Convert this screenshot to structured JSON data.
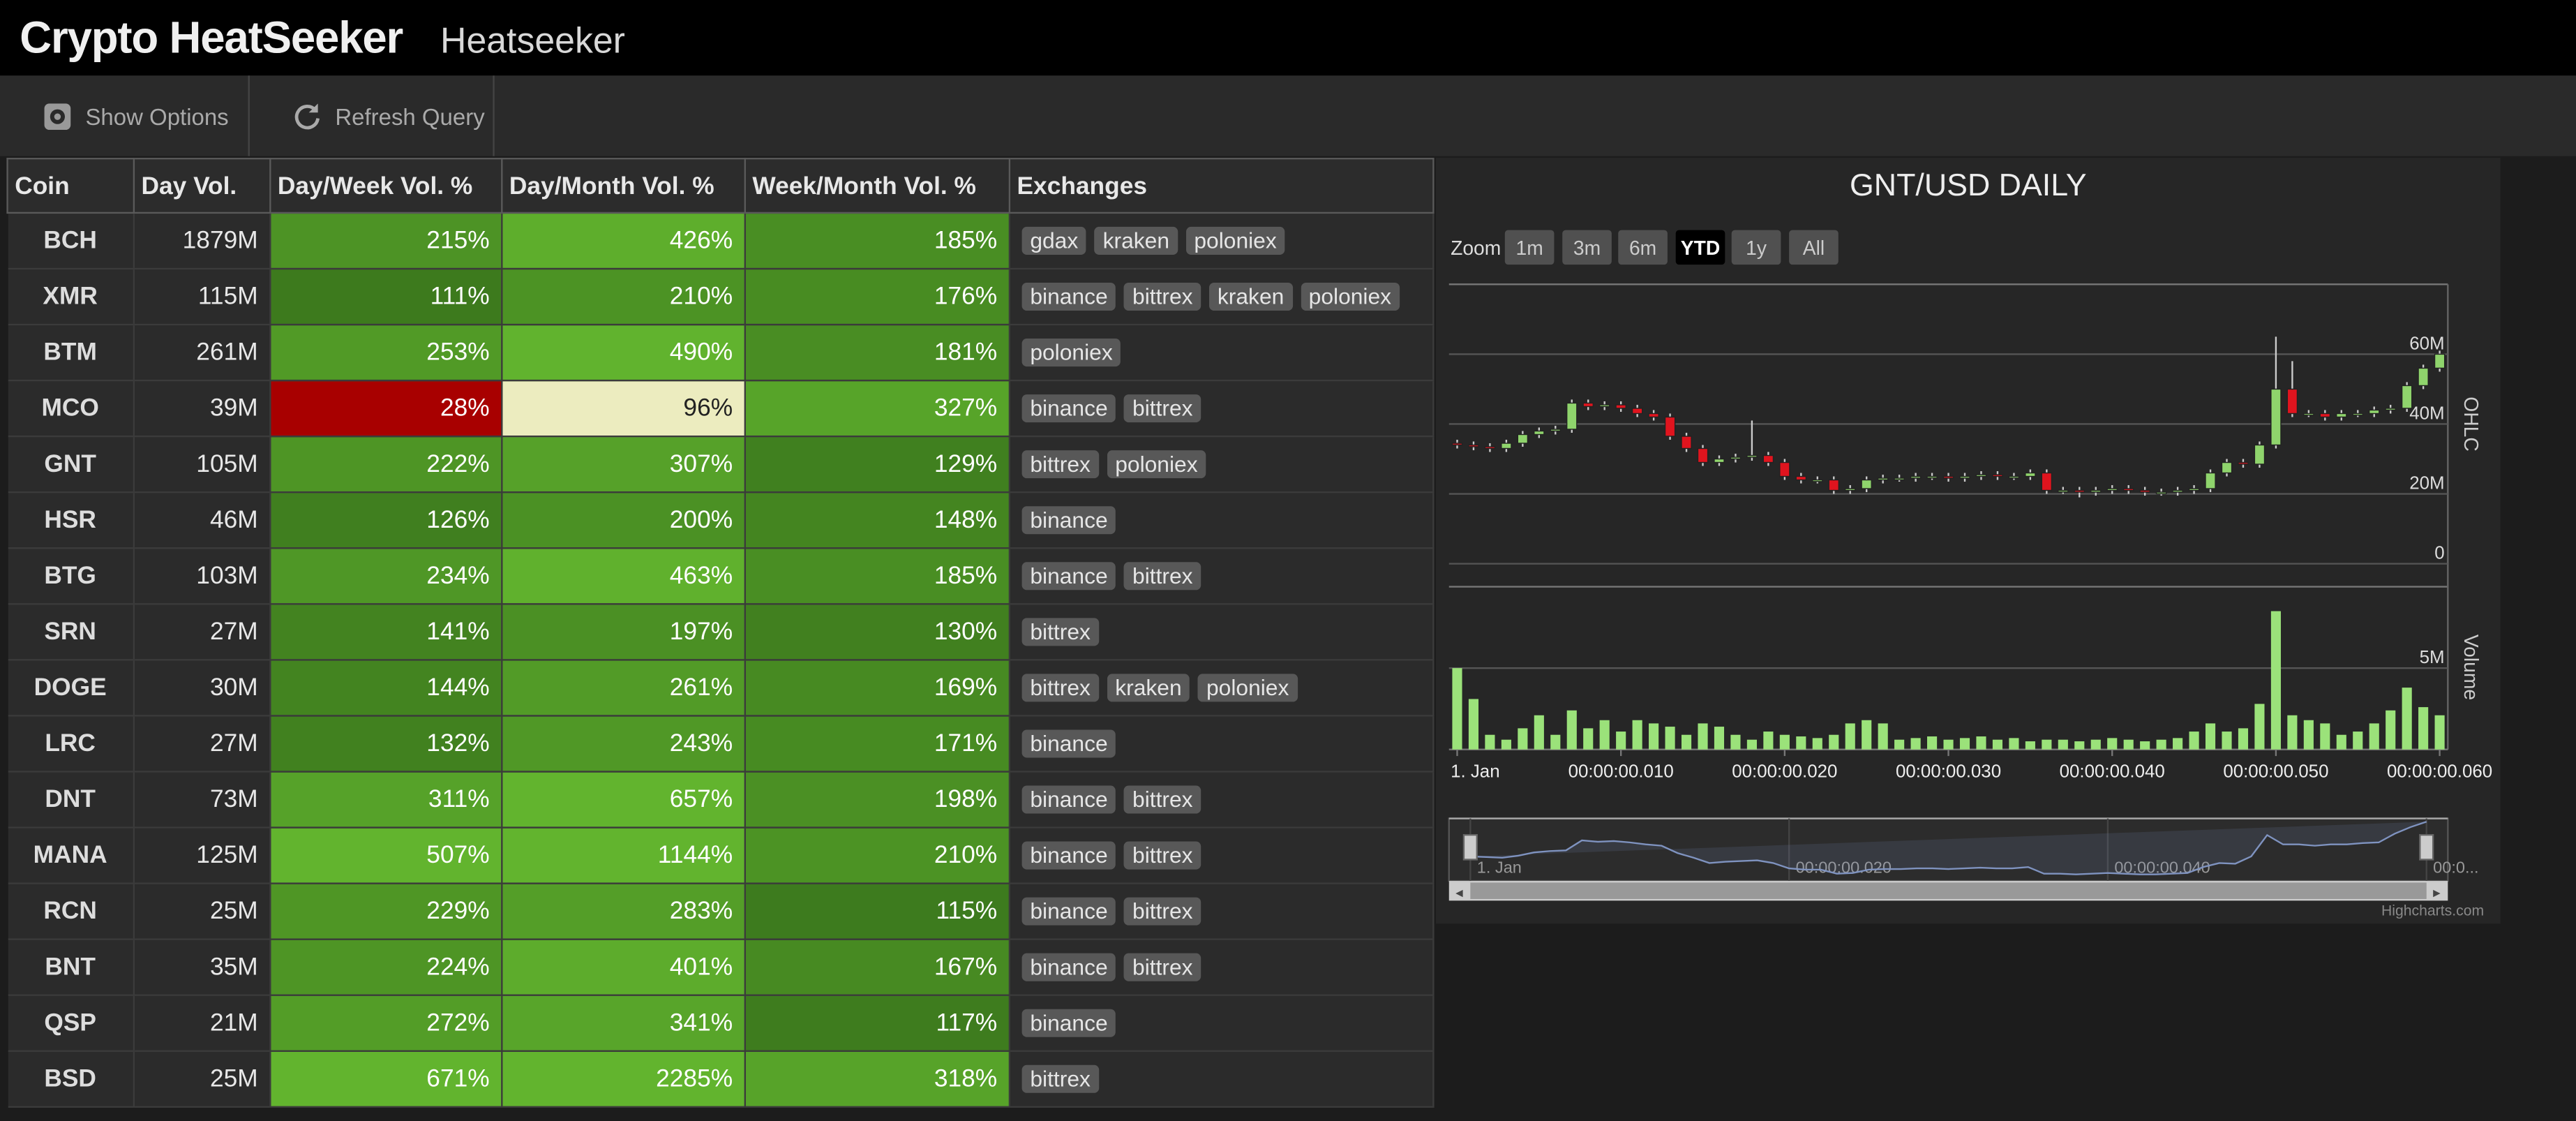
{
  "header": {
    "title": "Crypto HeatSeeker",
    "subtitle": "Heatseeker"
  },
  "toolbar": {
    "buttons": [
      "Show Options",
      "Refresh Query"
    ]
  },
  "table": {
    "columns": [
      "Coin",
      "Day Vol.",
      "Day/Week Vol. %",
      "Day/Month Vol. %",
      "Week/Month Vol. %",
      "Exchanges"
    ],
    "rows": [
      [
        "BCH",
        "1879M",
        "215%",
        "426%",
        "185%",
        [
          "gdax",
          "kraken",
          "poloniex"
        ]
      ],
      [
        "XMR",
        "115M",
        "111%",
        "210%",
        "176%",
        [
          "binance",
          "bittrex",
          "kraken",
          "poloniex"
        ]
      ],
      [
        "BTM",
        "261M",
        "253%",
        "490%",
        "181%",
        [
          "poloniex"
        ]
      ],
      [
        "MCO",
        "39M",
        "28%",
        "96%",
        "327%",
        [
          "binance",
          "bittrex"
        ]
      ],
      [
        "GNT",
        "105M",
        "222%",
        "307%",
        "129%",
        [
          "bittrex",
          "poloniex"
        ]
      ],
      [
        "HSR",
        "46M",
        "126%",
        "200%",
        "148%",
        [
          "binance"
        ]
      ],
      [
        "BTG",
        "103M",
        "234%",
        "463%",
        "185%",
        [
          "binance",
          "bittrex"
        ]
      ],
      [
        "SRN",
        "27M",
        "141%",
        "197%",
        "130%",
        [
          "bittrex"
        ]
      ],
      [
        "DOGE",
        "30M",
        "144%",
        "261%",
        "169%",
        [
          "bittrex",
          "kraken",
          "poloniex"
        ]
      ],
      [
        "LRC",
        "27M",
        "132%",
        "243%",
        "171%",
        [
          "binance"
        ]
      ],
      [
        "DNT",
        "73M",
        "311%",
        "657%",
        "198%",
        [
          "binance",
          "bittrex"
        ]
      ],
      [
        "MANA",
        "125M",
        "507%",
        "1144%",
        "210%",
        [
          "binance",
          "bittrex"
        ]
      ],
      [
        "RCN",
        "25M",
        "229%",
        "283%",
        "115%",
        [
          "binance",
          "bittrex"
        ]
      ],
      [
        "BNT",
        "35M",
        "224%",
        "401%",
        "167%",
        [
          "binance",
          "bittrex"
        ]
      ],
      [
        "QSP",
        "21M",
        "272%",
        "341%",
        "117%",
        [
          "binance"
        ]
      ],
      [
        "BSD",
        "25M",
        "671%",
        "2285%",
        "318%",
        [
          "bittrex"
        ]
      ]
    ]
  },
  "chart_data": {
    "type": "candlestick",
    "title": "GNT/USD DAILY",
    "zoom": {
      "label": "Zoom",
      "buttons": [
        "1m",
        "3m",
        "6m",
        "YTD",
        "1y",
        "All"
      ],
      "selected": 3
    },
    "x": [
      0,
      1,
      2,
      3,
      4,
      5,
      6,
      7,
      8,
      9,
      10,
      11,
      12,
      13,
      14,
      15,
      16,
      17,
      18,
      19,
      20,
      21,
      22,
      23,
      24,
      25,
      26,
      27,
      28,
      29,
      30,
      31,
      32,
      33,
      34,
      35,
      36,
      37,
      38,
      39,
      40,
      41,
      42,
      43,
      44,
      45,
      46,
      47,
      48,
      49,
      50,
      51,
      52,
      53,
      54,
      55,
      56,
      57,
      58,
      59,
      60
    ],
    "xlim": [
      -0.5,
      60.5
    ],
    "xticks": [
      {
        "value": 0,
        "label": "1. Jan"
      },
      {
        "value": 10,
        "label": "00:00:00.010"
      },
      {
        "value": 20,
        "label": "00:00:00.020"
      },
      {
        "value": 30,
        "label": "00:00:00.030"
      },
      {
        "value": 40,
        "label": "00:00:00.040"
      },
      {
        "value": 50,
        "label": "00:00:00.050"
      },
      {
        "value": 60,
        "label": "00:00:00.060"
      }
    ],
    "ylim": [
      0,
      80000000
    ],
    "yticks": [
      0,
      {
        "value": 20000000,
        "label": "20M"
      },
      {
        "value": 40000000,
        "label": "40M"
      },
      {
        "value": 60000000,
        "label": "60M"
      }
    ],
    "y2lim": [
      0,
      10000000
    ],
    "y2ticks": [
      {
        "value": 5000000,
        "label": "5M"
      }
    ],
    "grid": true,
    "series": [
      {
        "name": "OHLC",
        "up_color": "#8fd46c",
        "down_color": "#e0141e",
        "open": [
          34500000,
          34000000,
          33500000,
          33000000,
          34500000,
          37000000,
          38000000,
          38500000,
          46000000,
          45000000,
          45500000,
          44500000,
          43000000,
          42000000,
          36500000,
          33000000,
          29000000,
          30000000,
          30500000,
          31000000,
          29000000,
          25000000,
          24000000,
          24000000,
          21000000,
          21500000,
          24000000,
          24500000,
          24500000,
          25000000,
          25000000,
          24500000,
          25000000,
          25500000,
          25000000,
          25000000,
          26000000,
          21000000,
          21000000,
          20500000,
          21000000,
          21500000,
          21000000,
          20500000,
          20500000,
          21000000,
          21500000,
          26000000,
          29000000,
          28500000,
          34000000,
          50000000,
          43000000,
          43000000,
          42000000,
          43000000,
          43000000,
          44000000,
          44500000,
          51000000,
          56000000
        ],
        "high": [
          35500000,
          35000000,
          34500000,
          35500000,
          38000000,
          39000000,
          39500000,
          47000000,
          47000000,
          46500000,
          46500000,
          45500000,
          44000000,
          43000000,
          37500000,
          34000000,
          31000000,
          31500000,
          41000000,
          32000000,
          30000000,
          26000000,
          25000000,
          25000000,
          22500000,
          25000000,
          25500000,
          25500000,
          26000000,
          26000000,
          26000000,
          26000000,
          26500000,
          26500000,
          26000000,
          27000000,
          27000000,
          22000000,
          22000000,
          22000000,
          22500000,
          22500000,
          22000000,
          21500000,
          22000000,
          22500000,
          27000000,
          30000000,
          30000000,
          35000000,
          65000000,
          58000000,
          44000000,
          44000000,
          44000000,
          44000000,
          45000000,
          45500000,
          52000000,
          57000000,
          61000000
        ],
        "low": [
          33000000,
          32500000,
          32000000,
          32000000,
          33500000,
          36000000,
          37000000,
          37500000,
          44000000,
          44000000,
          43500000,
          42000000,
          41000000,
          35500000,
          32000000,
          28000000,
          28000000,
          29000000,
          29500000,
          28000000,
          24000000,
          23000000,
          23000000,
          20000000,
          20000000,
          20500000,
          23000000,
          23500000,
          23500000,
          24000000,
          23500000,
          23500000,
          24000000,
          24000000,
          24000000,
          24000000,
          20000000,
          20000000,
          19000000,
          19500000,
          20000000,
          20000000,
          19500000,
          19500000,
          19500000,
          20000000,
          20500000,
          25000000,
          27500000,
          27500000,
          33000000,
          42000000,
          42000000,
          41000000,
          41000000,
          42000000,
          42000000,
          43000000,
          43500000,
          50000000,
          55000000
        ],
        "close": [
          34000000,
          33500000,
          33000000,
          34500000,
          37000000,
          38000000,
          38500000,
          46000000,
          45000000,
          45500000,
          44500000,
          43000000,
          42000000,
          36500000,
          33000000,
          29000000,
          30000000,
          30500000,
          31000000,
          29000000,
          25000000,
          24000000,
          24000000,
          21000000,
          21500000,
          24000000,
          24500000,
          24500000,
          25000000,
          25000000,
          24500000,
          25000000,
          25500000,
          25000000,
          25000000,
          26000000,
          21000000,
          21000000,
          20500000,
          21000000,
          21500000,
          21000000,
          20500000,
          20500000,
          21000000,
          21500000,
          26000000,
          29000000,
          28500000,
          34000000,
          50000000,
          43000000,
          43000000,
          42000000,
          43000000,
          43000000,
          44000000,
          44500000,
          51000000,
          56000000,
          60000000
        ]
      },
      {
        "name": "Volume",
        "axis": "y2",
        "color": "#9be27a",
        "values": [
          5000000,
          3100000,
          900000,
          600000,
          1300000,
          2100000,
          900000,
          2400000,
          1300000,
          1800000,
          1100000,
          1800000,
          1600000,
          1400000,
          900000,
          1600000,
          1400000,
          900000,
          600000,
          1100000,
          900000,
          800000,
          700000,
          900000,
          1600000,
          1800000,
          1600000,
          600000,
          700000,
          800000,
          600000,
          700000,
          800000,
          600000,
          700000,
          500000,
          600000,
          600000,
          500000,
          600000,
          700000,
          600000,
          500000,
          600000,
          700000,
          1100000,
          1600000,
          1100000,
          1300000,
          2800000,
          8500000,
          2100000,
          1800000,
          1600000,
          900000,
          1100000,
          1600000,
          2400000,
          3800000,
          2600000,
          2100000
        ]
      }
    ],
    "navigator": {
      "xticks": [
        {
          "value": 0,
          "label": "1. Jan"
        },
        {
          "value": 20,
          "label": "00:00:00.020"
        },
        {
          "value": 40,
          "label": "00:00:00.040"
        },
        {
          "value": 60,
          "label": "00:0..."
        }
      ]
    },
    "credits": "Highcharts.com"
  }
}
